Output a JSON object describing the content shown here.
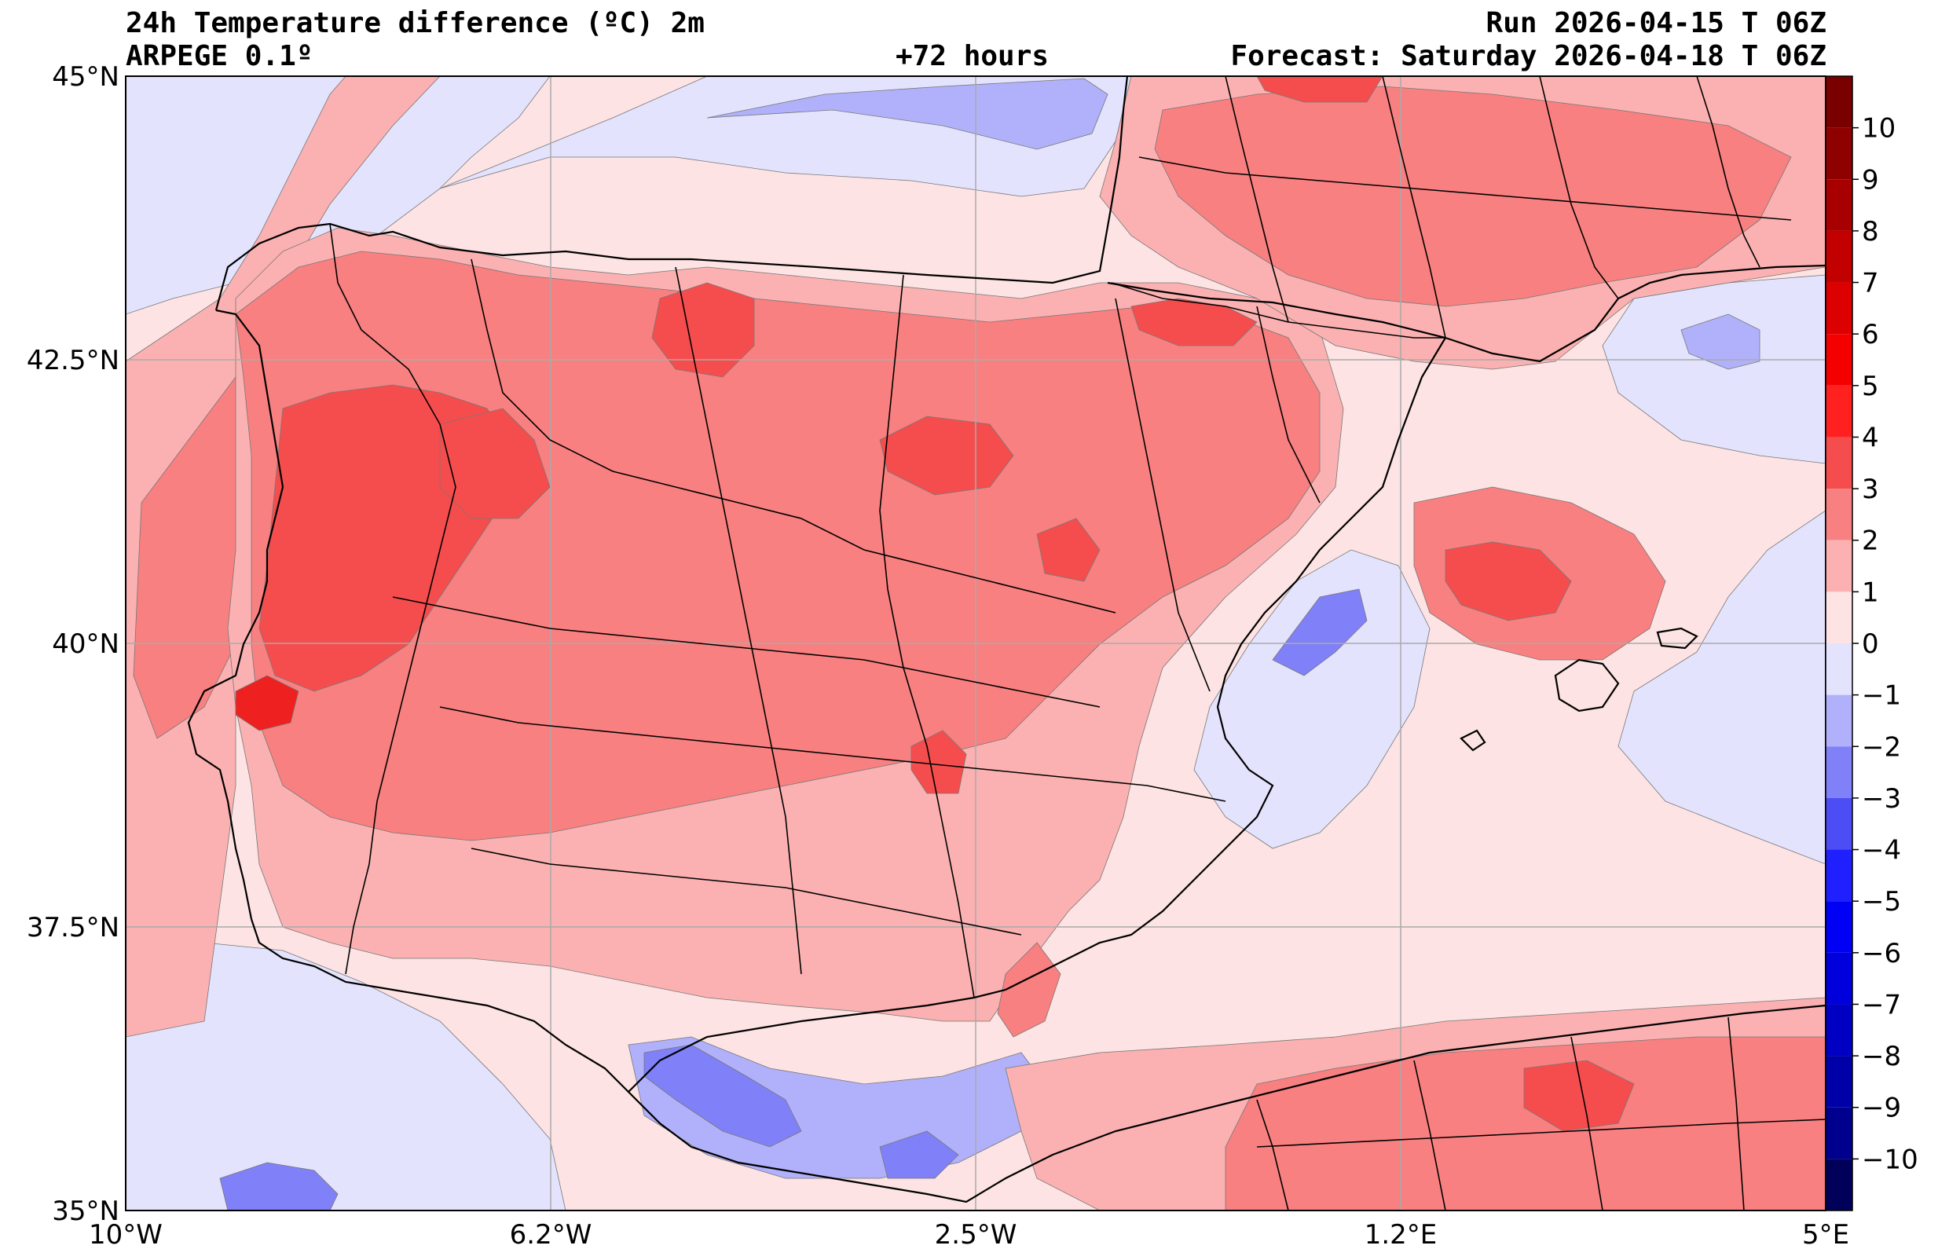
{
  "header": {
    "title": "24h Temperature difference (ºC) 2m",
    "model": "ARPEGE 0.1º",
    "lead_time": "+72 hours",
    "run": "Run 2026-04-15 T 06Z",
    "forecast": "Forecast: Saturday 2026-04-18 T 06Z"
  },
  "map": {
    "lon_range": [
      -10,
      5
    ],
    "lat_range": [
      35,
      45
    ],
    "lat_ticks": [
      {
        "value": 45,
        "label": "45°N"
      },
      {
        "value": 42.5,
        "label": "42.5°N"
      },
      {
        "value": 40,
        "label": "40°N"
      },
      {
        "value": 37.5,
        "label": "37.5°N"
      },
      {
        "value": 35,
        "label": "35°N"
      }
    ],
    "lon_ticks": [
      {
        "value": -10,
        "label": "10°W"
      },
      {
        "value": -6.25,
        "label": "6.2°W"
      },
      {
        "value": -2.5,
        "label": "2.5°W"
      },
      {
        "value": 1.25,
        "label": "1.2°E"
      },
      {
        "value": 5,
        "label": "5°E"
      }
    ],
    "colors": {
      "sea_background": "#fde3e3",
      "weak_warm": "#fbb1b1",
      "warm": "#f88080",
      "strong_warm": "#f54d4d",
      "very_warm": "#ef2020",
      "weak_cool": "#e3e3fd",
      "cool": "#b1b1fb",
      "strong_cool": "#8080f8"
    }
  },
  "colorbar": {
    "labels": [
      "10",
      "9",
      "8",
      "7",
      "6",
      "5",
      "4",
      "3",
      "2",
      "1",
      "0",
      "−1",
      "−2",
      "−3",
      "−4",
      "−5",
      "−6",
      "−7",
      "−8",
      "−9",
      "−10"
    ],
    "bins": [
      {
        "lo": 10,
        "hi": 11,
        "color": "#7a0000"
      },
      {
        "lo": 9,
        "hi": 10,
        "color": "#8f0000"
      },
      {
        "lo": 8,
        "hi": 9,
        "color": "#a80000"
      },
      {
        "lo": 7,
        "hi": 8,
        "color": "#c20000"
      },
      {
        "lo": 6,
        "hi": 7,
        "color": "#dc0000"
      },
      {
        "lo": 5,
        "hi": 6,
        "color": "#f50000"
      },
      {
        "lo": 4,
        "hi": 5,
        "color": "#ff2020"
      },
      {
        "lo": 3,
        "hi": 4,
        "color": "#f54d4d"
      },
      {
        "lo": 2,
        "hi": 3,
        "color": "#f88080"
      },
      {
        "lo": 1,
        "hi": 2,
        "color": "#fbb1b1"
      },
      {
        "lo": 0,
        "hi": 1,
        "color": "#fde3e3"
      },
      {
        "lo": -1,
        "hi": 0,
        "color": "#e3e3fd"
      },
      {
        "lo": -2,
        "hi": -1,
        "color": "#b1b1fb"
      },
      {
        "lo": -3,
        "hi": -2,
        "color": "#8080f8"
      },
      {
        "lo": -4,
        "hi": -3,
        "color": "#4d4df5"
      },
      {
        "lo": -5,
        "hi": -4,
        "color": "#2020ff"
      },
      {
        "lo": -6,
        "hi": -5,
        "color": "#0000f5"
      },
      {
        "lo": -7,
        "hi": -6,
        "color": "#0000dc"
      },
      {
        "lo": -8,
        "hi": -7,
        "color": "#0000c2"
      },
      {
        "lo": -9,
        "hi": -8,
        "color": "#0000a8"
      },
      {
        "lo": -10,
        "hi": -9,
        "color": "#00008f"
      },
      {
        "lo": -11,
        "hi": -10,
        "color": "#00005a"
      }
    ]
  }
}
